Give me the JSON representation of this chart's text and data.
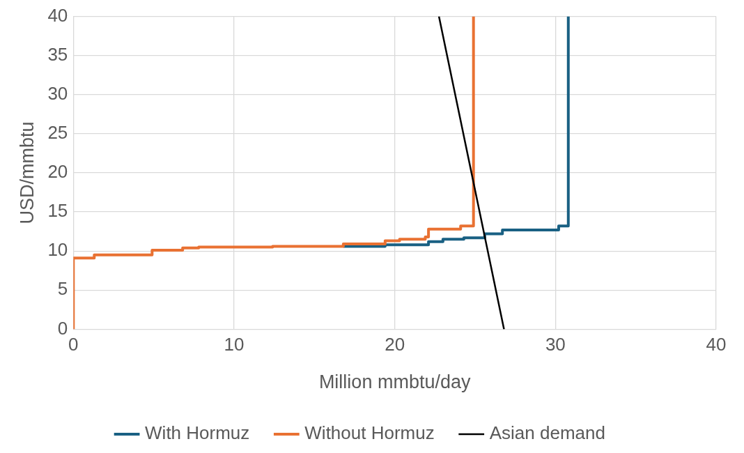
{
  "chart_data": {
    "type": "step",
    "xlabel": "Million mmbtu/day",
    "ylabel": "USD/mmbtu",
    "xlim": [
      0,
      40
    ],
    "xticks": [
      0,
      10,
      20,
      30,
      40
    ],
    "ylim": [
      0,
      40
    ],
    "yticks": [
      0,
      5,
      10,
      15,
      20,
      25,
      30,
      35,
      40
    ],
    "grid": true,
    "legend": "bottom",
    "marker": "none",
    "series": [
      {
        "name": "With Hormuz",
        "color": "#196083",
        "type": "step",
        "x": [
          16.8,
          19.4,
          22.1,
          23.0,
          24.3,
          25.6,
          26.7,
          30.2,
          30.8,
          30.8
        ],
        "values": [
          10.6,
          10.8,
          11.2,
          11.5,
          11.7,
          12.2,
          12.7,
          13.2,
          13.2,
          40
        ]
      },
      {
        "name": "Without Hormuz",
        "color": "#e97132",
        "type": "step",
        "x": [
          0,
          0,
          1.3,
          4.9,
          6.8,
          7.8,
          12.4,
          16.8,
          19.4,
          20.3,
          21.9,
          22.1,
          24.1,
          24.9,
          24.9
        ],
        "values": [
          0,
          9.1,
          9.5,
          10.1,
          10.4,
          10.5,
          10.6,
          10.9,
          11.3,
          11.5,
          11.8,
          12.8,
          13.2,
          13.2,
          40
        ]
      },
      {
        "name": "Asian demand",
        "color": "#000000",
        "type": "line",
        "x": [
          22.75,
          26.8
        ],
        "values": [
          40,
          0
        ]
      }
    ]
  }
}
